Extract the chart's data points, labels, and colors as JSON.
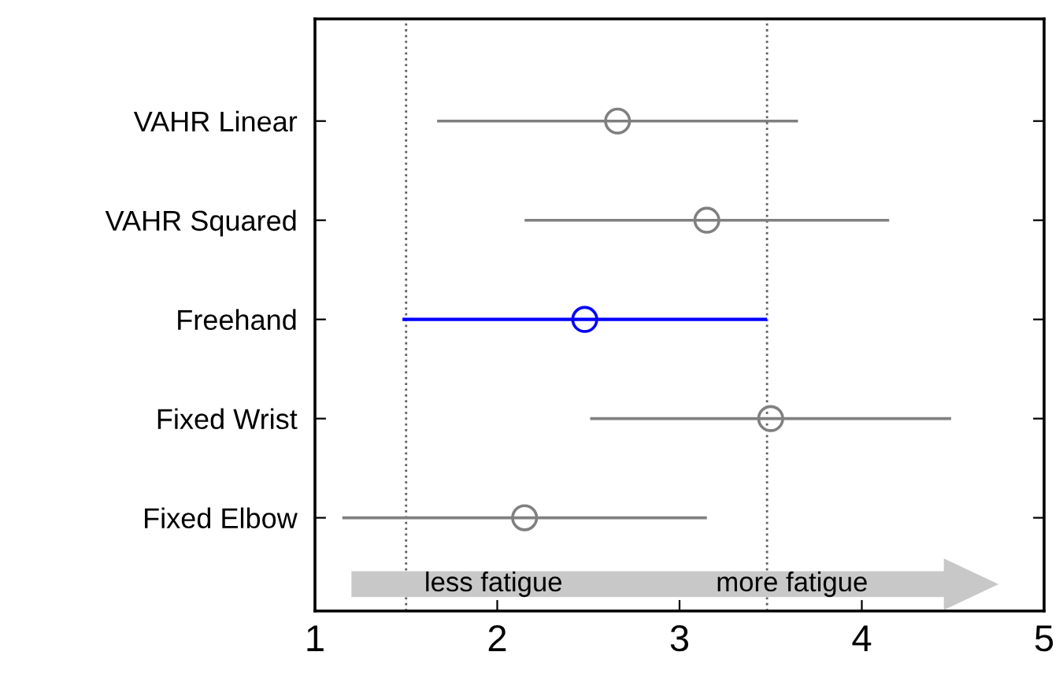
{
  "chart_data": {
    "type": "scatter",
    "orientation": "horizontal",
    "categories": [
      "VAHR Linear",
      "VAHR Squared",
      "Freehand",
      "Fixed Wrist",
      "Fixed Elbow"
    ],
    "values": [
      2.66,
      3.15,
      2.48,
      3.5,
      2.15
    ],
    "errors": [
      0.99,
      1.0,
      1.0,
      0.99,
      1.0
    ],
    "colors": [
      "#808080",
      "#808080",
      "#0000ff",
      "#808080",
      "#808080"
    ],
    "marker": "circle",
    "xlim": [
      1,
      5
    ],
    "xticks": [
      1,
      2,
      3,
      4,
      5
    ],
    "ref_lines": [
      {
        "axis": "x",
        "value": 1.5,
        "color": "#606060",
        "line_style": "dotted"
      },
      {
        "axis": "x",
        "value": 3.48,
        "color": "#606060",
        "line_style": "dotted"
      }
    ],
    "annotations": [
      "less fatigue",
      "more fatigue"
    ],
    "grid": false,
    "legend": false
  }
}
